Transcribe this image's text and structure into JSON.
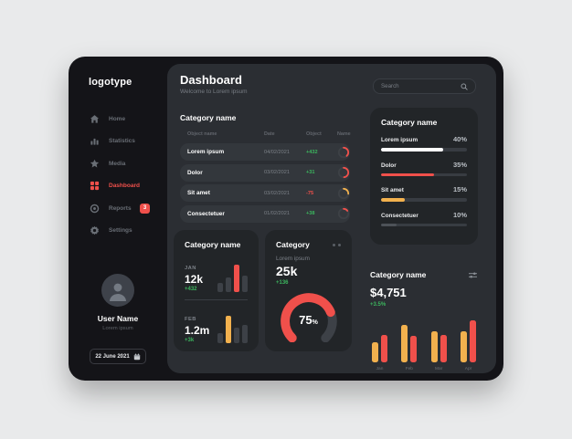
{
  "colors": {
    "accent_red": "#f0504b",
    "accent_yellow": "#f2b14e",
    "accent_green": "#3cb55e",
    "bar_gray": "#3d4147",
    "track_gray": "#383c42",
    "fill_white": "#ffffff",
    "fill_dim_gray": "#4d5258"
  },
  "app": {
    "logo": "logotype"
  },
  "sidebar": {
    "items": [
      {
        "label": "Home",
        "icon": "home-icon",
        "active": false,
        "badge": null
      },
      {
        "label": "Statistics",
        "icon": "bar-chart-icon",
        "active": false,
        "badge": null
      },
      {
        "label": "Media",
        "icon": "star-icon",
        "active": false,
        "badge": null
      },
      {
        "label": "Dashboard",
        "icon": "grid-icon",
        "active": true,
        "badge": null
      },
      {
        "label": "Reports",
        "icon": "target-icon",
        "active": false,
        "badge": "3"
      },
      {
        "label": "Settings",
        "icon": "gear-icon",
        "active": false,
        "badge": null
      }
    ],
    "user": {
      "name": "User Name",
      "subtitle": "Lorem ipsum"
    },
    "date_button": "22 June 2021"
  },
  "header": {
    "title": "Dashboard",
    "subtitle": "Welcome to Lorem ipsum",
    "search_placeholder": "Search"
  },
  "table": {
    "title": "Category name",
    "columns": [
      "Object name",
      "Date",
      "Object",
      "Name"
    ],
    "rows": [
      {
        "name": "Lorem ipsum",
        "date": "04/02/2021",
        "value": "+432",
        "trend": "green",
        "ring_percent": 38,
        "ring_color": "#f0504b"
      },
      {
        "name": "Dolor",
        "date": "03/02/2021",
        "value": "+31",
        "trend": "green",
        "ring_percent": 48,
        "ring_color": "#f0504b"
      },
      {
        "name": "Sit amet",
        "date": "03/02/2021",
        "value": "-75",
        "trend": "red",
        "ring_percent": 26,
        "ring_color": "#f2b14e"
      },
      {
        "name": "Consectetuer",
        "date": "01/02/2021",
        "value": "+38",
        "trend": "green",
        "ring_percent": 15,
        "ring_color": "#f0504b"
      }
    ]
  },
  "progress_card": {
    "title": "Category name",
    "items": [
      {
        "label": "Lorem ipsum",
        "percent_label": "40%",
        "fill_percent": 72,
        "color": "#ffffff"
      },
      {
        "label": "Dolor",
        "percent_label": "35%",
        "fill_percent": 62,
        "color": "#f0504b"
      },
      {
        "label": "Sit amet",
        "percent_label": "15%",
        "fill_percent": 28,
        "color": "#f2b14e"
      },
      {
        "label": "Consectetuer",
        "percent_label": "10%",
        "fill_percent": 18,
        "color": "#4d5258"
      }
    ]
  },
  "months_card": {
    "title": "Category name",
    "entries": [
      {
        "month": "JAN",
        "value": "12k",
        "delta": "+432",
        "bars": [
          {
            "height": 33,
            "color": "#3d4147"
          },
          {
            "height": 53,
            "color": "#3d4147"
          },
          {
            "height": 100,
            "color": "#f0504b"
          },
          {
            "height": 60,
            "color": "#3d4147"
          }
        ]
      },
      {
        "month": "FEB",
        "value": "1.2m",
        "delta": "+3k",
        "bars": [
          {
            "height": 36,
            "color": "#3d4147"
          },
          {
            "height": 100,
            "color": "#f2b14e"
          },
          {
            "height": 56,
            "color": "#3d4147"
          },
          {
            "height": 66,
            "color": "#3d4147"
          }
        ]
      }
    ]
  },
  "gauge_card": {
    "title": "Category",
    "label": "Lorem ipsum",
    "value": "25k",
    "delta": "+136",
    "gauge_percent": 75,
    "gauge_value_label": "75",
    "gauge_unit": "%",
    "gauge_color": "#f0504b",
    "gauge_track_color": "#3d4147"
  },
  "revenue_card": {
    "title": "Category name",
    "value": "$4,751",
    "delta": "+3.5%",
    "chart": {
      "type": "bar",
      "categories": [
        "Jan",
        "Feb",
        "Mar",
        "Apr"
      ],
      "series": [
        {
          "name": "series-yellow",
          "color": "#f2b14e",
          "values": [
            42,
            78,
            65,
            65
          ]
        },
        {
          "name": "series-red",
          "color": "#f0504b",
          "values": [
            58,
            55,
            58,
            88
          ]
        }
      ]
    }
  }
}
